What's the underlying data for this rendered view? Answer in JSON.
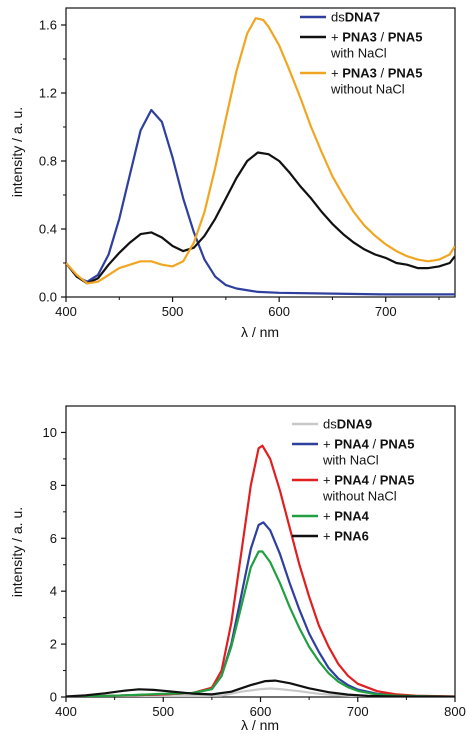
{
  "chart_data": [
    {
      "type": "line",
      "xlabel": "λ / nm",
      "ylabel": "intensity / a. u.",
      "xlim": [
        400,
        765
      ],
      "ylim": [
        0,
        1.7
      ],
      "xticks": [
        "400",
        "500",
        "600",
        "700"
      ],
      "yticks": [
        "0.0",
        "0.4",
        "0.8",
        "1.2",
        "1.6"
      ],
      "legend_position": "top-right",
      "series": [
        {
          "legend": [
            {
              "prefix": "ds",
              "bold": "DNA7",
              "tail": ""
            }
          ],
          "color": "#2e3f9e",
          "points": [
            [
              400,
              0.2
            ],
            [
              410,
              0.12
            ],
            [
              420,
              0.09
            ],
            [
              430,
              0.13
            ],
            [
              440,
              0.25
            ],
            [
              450,
              0.46
            ],
            [
              460,
              0.72
            ],
            [
              470,
              0.98
            ],
            [
              480,
              1.1
            ],
            [
              490,
              1.03
            ],
            [
              500,
              0.82
            ],
            [
              510,
              0.58
            ],
            [
              520,
              0.38
            ],
            [
              530,
              0.22
            ],
            [
              540,
              0.12
            ],
            [
              550,
              0.07
            ],
            [
              560,
              0.05
            ],
            [
              580,
              0.03
            ],
            [
              600,
              0.025
            ],
            [
              650,
              0.02
            ],
            [
              700,
              0.015
            ],
            [
              765,
              0.015
            ]
          ]
        },
        {
          "legend": [
            {
              "prefix": "+ ",
              "bold": "PNA3",
              "tail": " / "
            },
            {
              "prefix": "",
              "bold": "PNA5",
              "tail": ""
            }
          ],
          "sublabel": "with NaCl",
          "color": "#111111",
          "points": [
            [
              400,
              0.2
            ],
            [
              410,
              0.12
            ],
            [
              420,
              0.08
            ],
            [
              430,
              0.11
            ],
            [
              440,
              0.19
            ],
            [
              450,
              0.26
            ],
            [
              460,
              0.32
            ],
            [
              470,
              0.37
            ],
            [
              480,
              0.38
            ],
            [
              490,
              0.35
            ],
            [
              500,
              0.3
            ],
            [
              510,
              0.27
            ],
            [
              520,
              0.29
            ],
            [
              530,
              0.36
            ],
            [
              540,
              0.46
            ],
            [
              550,
              0.58
            ],
            [
              560,
              0.7
            ],
            [
              570,
              0.8
            ],
            [
              580,
              0.85
            ],
            [
              590,
              0.84
            ],
            [
              600,
              0.8
            ],
            [
              610,
              0.73
            ],
            [
              620,
              0.65
            ],
            [
              630,
              0.58
            ],
            [
              640,
              0.5
            ],
            [
              650,
              0.43
            ],
            [
              660,
              0.37
            ],
            [
              670,
              0.32
            ],
            [
              680,
              0.28
            ],
            [
              690,
              0.25
            ],
            [
              700,
              0.23
            ],
            [
              710,
              0.2
            ],
            [
              720,
              0.19
            ],
            [
              730,
              0.17
            ],
            [
              740,
              0.17
            ],
            [
              750,
              0.18
            ],
            [
              760,
              0.2
            ],
            [
              765,
              0.24
            ]
          ]
        },
        {
          "legend": [
            {
              "prefix": "+ ",
              "bold": "PNA3",
              "tail": " / "
            },
            {
              "prefix": "",
              "bold": "PNA5",
              "tail": ""
            }
          ],
          "sublabel": "without NaCl",
          "color": "#f0a623",
          "points": [
            [
              400,
              0.2
            ],
            [
              410,
              0.13
            ],
            [
              420,
              0.08
            ],
            [
              430,
              0.09
            ],
            [
              440,
              0.13
            ],
            [
              450,
              0.17
            ],
            [
              460,
              0.19
            ],
            [
              470,
              0.21
            ],
            [
              480,
              0.21
            ],
            [
              490,
              0.19
            ],
            [
              500,
              0.18
            ],
            [
              510,
              0.21
            ],
            [
              520,
              0.32
            ],
            [
              530,
              0.5
            ],
            [
              540,
              0.76
            ],
            [
              550,
              1.05
            ],
            [
              560,
              1.33
            ],
            [
              570,
              1.55
            ],
            [
              578,
              1.64
            ],
            [
              585,
              1.63
            ],
            [
              590,
              1.59
            ],
            [
              600,
              1.48
            ],
            [
              610,
              1.33
            ],
            [
              620,
              1.17
            ],
            [
              630,
              1.0
            ],
            [
              640,
              0.85
            ],
            [
              650,
              0.71
            ],
            [
              660,
              0.6
            ],
            [
              670,
              0.5
            ],
            [
              680,
              0.42
            ],
            [
              690,
              0.36
            ],
            [
              700,
              0.31
            ],
            [
              710,
              0.27
            ],
            [
              720,
              0.24
            ],
            [
              730,
              0.22
            ],
            [
              740,
              0.21
            ],
            [
              750,
              0.22
            ],
            [
              760,
              0.25
            ],
            [
              765,
              0.3
            ]
          ]
        }
      ]
    },
    {
      "type": "line",
      "xlabel": "λ / nm",
      "ylabel": "intensity / a. u.",
      "xlim": [
        400,
        800
      ],
      "ylim": [
        0,
        11
      ],
      "xticks": [
        "400",
        "500",
        "600",
        "700",
        "800"
      ],
      "yticks": [
        "0",
        "2",
        "4",
        "6",
        "8",
        "10"
      ],
      "legend_position": "top-right",
      "series": [
        {
          "legend": [
            {
              "prefix": "ds",
              "bold": "DNA9",
              "tail": ""
            }
          ],
          "color": "#c8c8c8",
          "points": [
            [
              400,
              0.0
            ],
            [
              500,
              0.02
            ],
            [
              560,
              0.05
            ],
            [
              580,
              0.2
            ],
            [
              600,
              0.3
            ],
            [
              610,
              0.32
            ],
            [
              620,
              0.3
            ],
            [
              640,
              0.22
            ],
            [
              660,
              0.12
            ],
            [
              680,
              0.06
            ],
            [
              700,
              0.03
            ],
            [
              800,
              0.01
            ]
          ]
        },
        {
          "legend": [
            {
              "prefix": "+ ",
              "bold": "PNA4",
              "tail": " / "
            },
            {
              "prefix": "",
              "bold": "PNA5",
              "tail": ""
            }
          ],
          "sublabel": "with NaCl",
          "color": "#2e3f9e",
          "points": [
            [
              400,
              0.0
            ],
            [
              450,
              0.05
            ],
            [
              500,
              0.1
            ],
            [
              530,
              0.15
            ],
            [
              550,
              0.3
            ],
            [
              560,
              0.8
            ],
            [
              570,
              2.0
            ],
            [
              580,
              3.8
            ],
            [
              590,
              5.6
            ],
            [
              598,
              6.5
            ],
            [
              603,
              6.6
            ],
            [
              610,
              6.3
            ],
            [
              620,
              5.4
            ],
            [
              630,
              4.3
            ],
            [
              640,
              3.3
            ],
            [
              650,
              2.4
            ],
            [
              660,
              1.7
            ],
            [
              670,
              1.1
            ],
            [
              680,
              0.7
            ],
            [
              690,
              0.45
            ],
            [
              700,
              0.28
            ],
            [
              720,
              0.12
            ],
            [
              740,
              0.06
            ],
            [
              760,
              0.03
            ],
            [
              800,
              0.01
            ]
          ]
        },
        {
          "legend": [
            {
              "prefix": "+ ",
              "bold": "PNA4",
              "tail": " / "
            },
            {
              "prefix": "",
              "bold": "PNA5",
              "tail": ""
            }
          ],
          "sublabel": "without NaCl",
          "color": "#e02020",
          "points": [
            [
              400,
              0.0
            ],
            [
              450,
              0.05
            ],
            [
              500,
              0.1
            ],
            [
              530,
              0.15
            ],
            [
              550,
              0.35
            ],
            [
              560,
              1.0
            ],
            [
              570,
              2.8
            ],
            [
              580,
              5.4
            ],
            [
              590,
              8.0
            ],
            [
              598,
              9.4
            ],
            [
              602,
              9.5
            ],
            [
              610,
              9.0
            ],
            [
              620,
              7.8
            ],
            [
              630,
              6.4
            ],
            [
              640,
              5.0
            ],
            [
              650,
              3.8
            ],
            [
              660,
              2.7
            ],
            [
              670,
              1.9
            ],
            [
              680,
              1.25
            ],
            [
              690,
              0.8
            ],
            [
              700,
              0.5
            ],
            [
              720,
              0.22
            ],
            [
              740,
              0.1
            ],
            [
              760,
              0.05
            ],
            [
              800,
              0.02
            ]
          ]
        },
        {
          "legend": [
            {
              "prefix": "+ ",
              "bold": "PNA4",
              "tail": ""
            }
          ],
          "color": "#20a040",
          "points": [
            [
              400,
              0.0
            ],
            [
              450,
              0.05
            ],
            [
              500,
              0.12
            ],
            [
              530,
              0.15
            ],
            [
              550,
              0.3
            ],
            [
              560,
              0.8
            ],
            [
              570,
              1.9
            ],
            [
              580,
              3.4
            ],
            [
              590,
              4.9
            ],
            [
              598,
              5.5
            ],
            [
              602,
              5.5
            ],
            [
              610,
              5.1
            ],
            [
              620,
              4.3
            ],
            [
              630,
              3.4
            ],
            [
              640,
              2.6
            ],
            [
              650,
              1.9
            ],
            [
              660,
              1.35
            ],
            [
              670,
              0.9
            ],
            [
              680,
              0.58
            ],
            [
              690,
              0.37
            ],
            [
              700,
              0.23
            ],
            [
              720,
              0.1
            ],
            [
              740,
              0.05
            ],
            [
              800,
              0.01
            ]
          ]
        },
        {
          "legend": [
            {
              "prefix": "+ ",
              "bold": "PNA6",
              "tail": ""
            }
          ],
          "color": "#111111",
          "points": [
            [
              400,
              0.02
            ],
            [
              420,
              0.06
            ],
            [
              440,
              0.14
            ],
            [
              460,
              0.24
            ],
            [
              475,
              0.29
            ],
            [
              490,
              0.27
            ],
            [
              510,
              0.2
            ],
            [
              530,
              0.13
            ],
            [
              550,
              0.1
            ],
            [
              570,
              0.2
            ],
            [
              590,
              0.45
            ],
            [
              605,
              0.6
            ],
            [
              615,
              0.62
            ],
            [
              630,
              0.52
            ],
            [
              650,
              0.33
            ],
            [
              670,
              0.18
            ],
            [
              690,
              0.09
            ],
            [
              710,
              0.04
            ],
            [
              740,
              0.02
            ],
            [
              800,
              0.01
            ]
          ]
        }
      ]
    }
  ]
}
